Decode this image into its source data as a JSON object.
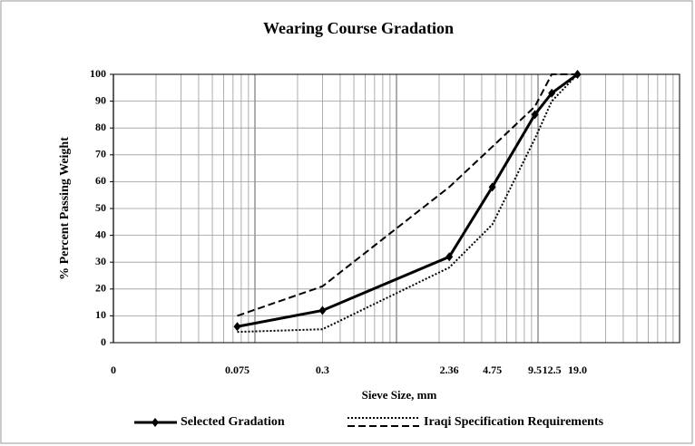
{
  "chart_data": {
    "type": "line",
    "title": "Wearing Course Gradation",
    "xlabel": "Sieve Size, mm",
    "ylabel": "% Percent Passing Weight",
    "x": [
      0.075,
      0.3,
      2.36,
      4.75,
      9.5,
      12.5,
      19
    ],
    "series": [
      {
        "name": "Selected Gradation",
        "color": "#000000",
        "values": [
          6,
          12,
          32,
          58,
          85,
          93,
          100
        ]
      },
      {
        "name": "Iraqi Specification Requirements",
        "color": "#000000",
        "lower": [
          4,
          5,
          28,
          44,
          76,
          90,
          100
        ],
        "upper": [
          10,
          21,
          58,
          73,
          88,
          100,
          100
        ]
      }
    ],
    "xlog": true,
    "xlim": [
      0.01,
      100
    ],
    "xticks": [
      {
        "value": 0.01,
        "label": "0"
      },
      0.075,
      0.3,
      2.36,
      4.75,
      9.5,
      12.5,
      {
        "value": 19,
        "label": "19.0"
      }
    ],
    "ylim": [
      0,
      100
    ],
    "yticks": [
      0,
      10,
      20,
      30,
      40,
      50,
      60,
      70,
      80,
      90,
      100
    ],
    "grid": true,
    "legend": "bottom"
  }
}
